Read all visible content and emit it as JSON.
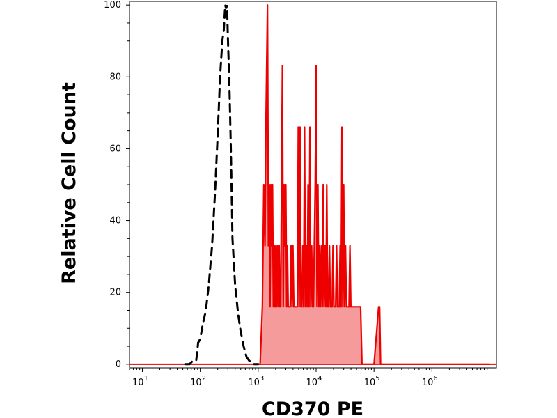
{
  "chart_data": {
    "type": "area",
    "title": "",
    "xlabel": "CD370 PE",
    "ylabel": "Relative Cell Count",
    "x_scale": "log",
    "xlim": [
      6,
      13000000
    ],
    "ylim": [
      -1,
      101
    ],
    "grid": false,
    "legend": "none",
    "x_ticks": [
      {
        "base": "10",
        "exp": "1"
      },
      {
        "base": "10",
        "exp": "2"
      },
      {
        "base": "10",
        "exp": "3"
      },
      {
        "base": "10",
        "exp": "4"
      },
      {
        "base": "10",
        "exp": "5"
      },
      {
        "base": "10",
        "exp": "6"
      }
    ],
    "y_ticks": [
      "0",
      "20",
      "40",
      "60",
      "80",
      "100"
    ],
    "series": [
      {
        "style": "dashed",
        "color": "#000000",
        "x": [
          55,
          65,
          75,
          85,
          92,
          100,
          110,
          125,
          140,
          160,
          180,
          200,
          220,
          240,
          255,
          270,
          280,
          290,
          300,
          320,
          340,
          360,
          400,
          450,
          500,
          560,
          630,
          700,
          800,
          900,
          1000
        ],
        "y": [
          0,
          0,
          1,
          1,
          6,
          7,
          11,
          15,
          22,
          33,
          48,
          64,
          80,
          90,
          93,
          100,
          99,
          100,
          91,
          77,
          58,
          35,
          22,
          14,
          9,
          5,
          2,
          1,
          0,
          0,
          0
        ]
      },
      {
        "style": "filled",
        "color": "#ee0000",
        "fill": "#f59b9b",
        "x": [
          1080,
          1180,
          1250,
          1310,
          1360,
          1400,
          1450,
          1500,
          1560,
          1600,
          1660,
          1710,
          1770,
          1830,
          1900,
          1960,
          2020,
          2090,
          2150,
          2230,
          2300,
          2370,
          2450,
          2530,
          2620,
          2710,
          2800,
          2900,
          3000,
          3100,
          3200,
          3300,
          3450,
          3570,
          3700,
          3840,
          3980,
          4120,
          4270,
          4420,
          4580,
          4750,
          4920,
          5100,
          5280,
          5470,
          5670,
          5880,
          6090,
          6310,
          6540,
          6780,
          7020,
          7280,
          7540,
          7810,
          8090,
          8380,
          8690,
          9000,
          9320,
          9660,
          10000,
          10360,
          10740,
          11130,
          11530,
          11940,
          12370,
          12820,
          13280,
          13760,
          14260,
          14770,
          15300,
          15850,
          16420,
          17010,
          17620,
          18260,
          18920,
          19600,
          20300,
          21030,
          21790,
          22570,
          23390,
          24230,
          25100,
          26000,
          26940,
          27910,
          28920,
          29960,
          31040,
          32160,
          33320,
          34520,
          35760,
          37050,
          38380,
          39770,
          41200,
          42680,
          44220,
          45810,
          47460,
          49170,
          50940,
          52780,
          54680,
          56640,
          58690,
          62000,
          100000,
          120000,
          125000,
          130000,
          200000,
          10000000
        ],
        "y": [
          0,
          16,
          50,
          33,
          66,
          83,
          100,
          33,
          50,
          16,
          50,
          33,
          50,
          16,
          33,
          16,
          33,
          16,
          33,
          16,
          33,
          16,
          16,
          50,
          83,
          16,
          50,
          33,
          50,
          16,
          33,
          16,
          16,
          16,
          33,
          16,
          33,
          16,
          16,
          16,
          16,
          16,
          66,
          16,
          66,
          16,
          16,
          33,
          16,
          66,
          16,
          33,
          16,
          50,
          16,
          66,
          16,
          33,
          16,
          16,
          33,
          50,
          83,
          16,
          50,
          16,
          33,
          16,
          33,
          16,
          50,
          16,
          33,
          16,
          50,
          16,
          16,
          33,
          16,
          16,
          16,
          33,
          16,
          16,
          16,
          33,
          16,
          16,
          16,
          33,
          16,
          66,
          16,
          50,
          16,
          33,
          16,
          16,
          16,
          16,
          33,
          16,
          16,
          16,
          16,
          16,
          16,
          16,
          16,
          16,
          16,
          16,
          16,
          0,
          0,
          16,
          16,
          0,
          0,
          0
        ]
      }
    ]
  }
}
